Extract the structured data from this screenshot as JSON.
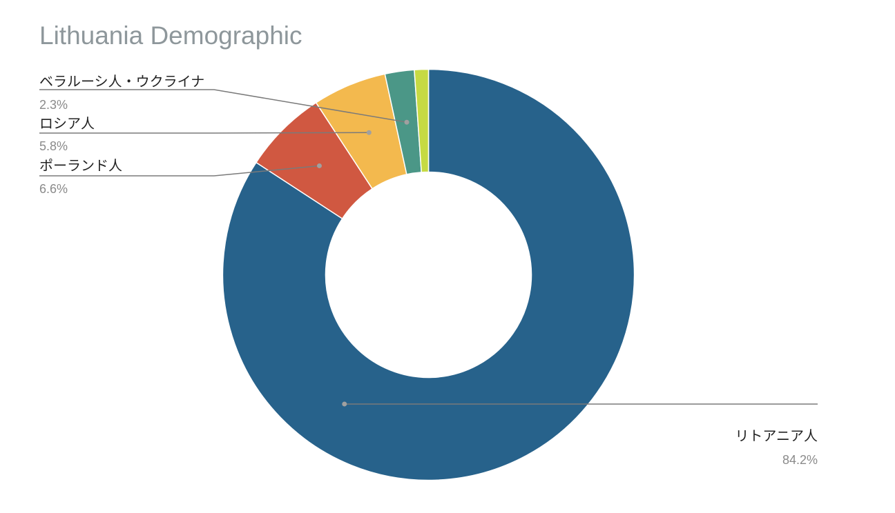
{
  "chart_data": {
    "type": "pie",
    "donut": true,
    "title": "Lithuania Demographic",
    "slices": [
      {
        "label": "リトアニア人",
        "value": 84.2,
        "value_label": "84.2%",
        "color": "#27628b"
      },
      {
        "label": "ポーランド人",
        "value": 6.6,
        "value_label": "6.6%",
        "color": "#d05841"
      },
      {
        "label": "ロシア人",
        "value": 5.8,
        "value_label": "5.8%",
        "color": "#f3b94e"
      },
      {
        "label": "ベラルーシ人・ウクライナ",
        "value": 2.3,
        "value_label": "2.3%",
        "color": "#4b9787"
      },
      {
        "label": "",
        "value": 1.1,
        "value_label": "",
        "color": "#c6da43"
      }
    ]
  }
}
